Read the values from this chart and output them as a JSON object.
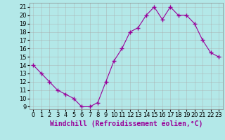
{
  "x": [
    0,
    1,
    2,
    3,
    4,
    5,
    6,
    7,
    8,
    9,
    10,
    11,
    12,
    13,
    14,
    15,
    16,
    17,
    18,
    19,
    20,
    21,
    22,
    23
  ],
  "y": [
    14,
    13,
    12,
    11,
    10.5,
    10,
    9,
    9,
    9.5,
    12,
    14.5,
    16,
    18,
    18.5,
    20,
    21,
    19.5,
    21,
    20,
    20,
    19,
    17,
    15.5,
    15
  ],
  "line_color": "#990099",
  "marker": "+",
  "bg_color": "#b3e8e8",
  "grid_color": "#aaaaaa",
  "xlabel": "Windchill (Refroidissement éolien,°C)",
  "xlabel_color": "#990099",
  "ylim_min": 8.7,
  "ylim_max": 21.5,
  "xlim_min": -0.5,
  "xlim_max": 23.5,
  "yticks": [
    9,
    10,
    11,
    12,
    13,
    14,
    15,
    16,
    17,
    18,
    19,
    20,
    21
  ],
  "xticks": [
    0,
    1,
    2,
    3,
    4,
    5,
    6,
    7,
    8,
    9,
    10,
    11,
    12,
    13,
    14,
    15,
    16,
    17,
    18,
    19,
    20,
    21,
    22,
    23
  ],
  "tick_fontsize": 6,
  "xlabel_fontsize": 7
}
